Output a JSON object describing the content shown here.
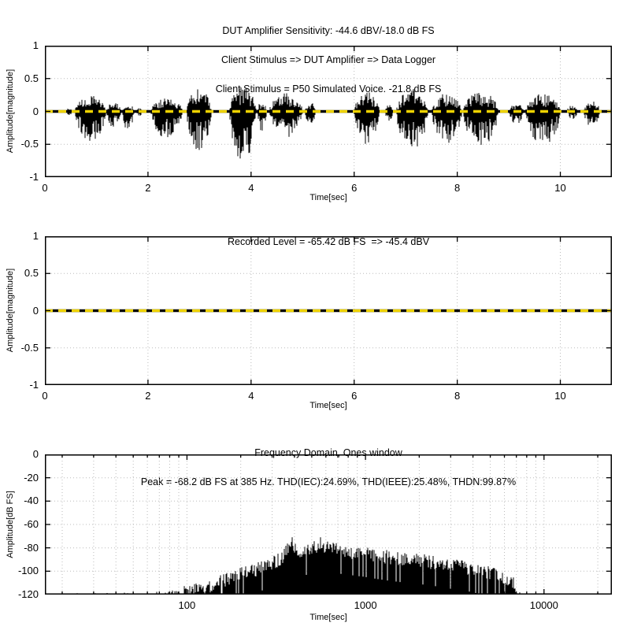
{
  "figure": {
    "background": "#ffffff"
  },
  "colors": {
    "data_line": "#000000",
    "reference_line": "#eed200",
    "grid_line": "#bbbbbb",
    "frame": "#000000"
  },
  "chart_data": [
    {
      "type": "line",
      "title_lines": [
        "DUT Amplifier Sensitivity: -44.6 dBV/-18.0 dB FS",
        "Client Stimulus => DUT Amplifier => Data Logger",
        "Client Stimulus = P50 Simulated Voice. -21.8 dB FS"
      ],
      "xlabel": "Time[sec]",
      "ylabel": "Amplitude[magnitude]",
      "xscale": "linear",
      "xlim": [
        0,
        11
      ],
      "ylim": [
        -1,
        1
      ],
      "grid": true,
      "legend": "none",
      "xticks": [
        {
          "v": 0,
          "label": "0"
        },
        {
          "v": 2,
          "label": "2"
        },
        {
          "v": 4,
          "label": "4"
        },
        {
          "v": 6,
          "label": "6"
        },
        {
          "v": 8,
          "label": "8"
        },
        {
          "v": 10,
          "label": "10"
        }
      ],
      "yticks": [
        {
          "v": 1,
          "label": "1"
        },
        {
          "v": 0.5,
          "label": "0.5"
        },
        {
          "v": 0,
          "label": "0"
        },
        {
          "v": -0.5,
          "label": "-0.5"
        },
        {
          "v": -1,
          "label": "-1"
        }
      ],
      "series": [
        {
          "name": "stimulus-waveform",
          "kind": "speech",
          "color": "#000000",
          "idle_amplitude": 0.007,
          "bursts": [
            [
              0.42,
              0.52,
              0.06,
              -0.08
            ],
            [
              0.58,
              1.2,
              0.25,
              -0.45
            ],
            [
              1.2,
              1.48,
              0.15,
              -0.25
            ],
            [
              1.5,
              1.73,
              0.12,
              -0.3
            ],
            [
              1.78,
              1.88,
              0.05,
              -0.08
            ],
            [
              2.06,
              2.67,
              0.22,
              -0.42
            ],
            [
              2.75,
              3.23,
              0.35,
              -0.62
            ],
            [
              3.58,
              4.1,
              0.4,
              -0.78
            ],
            [
              4.12,
              4.3,
              0.15,
              -0.3
            ],
            [
              4.35,
              5.0,
              0.28,
              -0.42
            ],
            [
              5.05,
              5.25,
              0.15,
              -0.2
            ],
            [
              6.0,
              6.49,
              0.3,
              -0.55
            ],
            [
              6.6,
              6.75,
              0.1,
              -0.15
            ],
            [
              6.82,
              7.43,
              0.35,
              -0.62
            ],
            [
              7.5,
              8.09,
              0.28,
              -0.5
            ],
            [
              8.11,
              8.8,
              0.3,
              -0.55
            ],
            [
              9.0,
              9.29,
              0.12,
              -0.2
            ],
            [
              9.33,
              10.0,
              0.28,
              -0.55
            ],
            [
              10.13,
              10.33,
              0.1,
              -0.12
            ],
            [
              10.46,
              10.77,
              0.17,
              -0.25
            ]
          ]
        },
        {
          "name": "zero-reference",
          "kind": "dashed-zero",
          "color": "#eed200",
          "y": 0
        }
      ]
    },
    {
      "type": "line",
      "title_lines": [
        "Recorded Level = -65.42 dB FS  => -45.4 dBV"
      ],
      "xlabel": "Time[sec]",
      "ylabel": "Amplitude[magnitude]",
      "xscale": "linear",
      "xlim": [
        0,
        11
      ],
      "ylim": [
        -1,
        1
      ],
      "grid": true,
      "legend": "none",
      "xticks": [
        {
          "v": 0,
          "label": "0"
        },
        {
          "v": 2,
          "label": "2"
        },
        {
          "v": 4,
          "label": "4"
        },
        {
          "v": 6,
          "label": "6"
        },
        {
          "v": 8,
          "label": "8"
        },
        {
          "v": 10,
          "label": "10"
        }
      ],
      "yticks": [
        {
          "v": 1,
          "label": "1"
        },
        {
          "v": 0.5,
          "label": "0.5"
        },
        {
          "v": 0,
          "label": "0"
        },
        {
          "v": -0.5,
          "label": "-0.5"
        },
        {
          "v": -1,
          "label": "-1"
        }
      ],
      "series": [
        {
          "name": "recorded-waveform",
          "kind": "speech",
          "color": "#000000",
          "idle_amplitude": 0.006,
          "bursts": []
        },
        {
          "name": "zero-reference",
          "kind": "dashed-zero",
          "color": "#eed200",
          "y": 0
        }
      ]
    },
    {
      "type": "line",
      "title_lines": [
        "Frequency Domain, Ones window",
        "Peak = -68.2 dB FS at 385 Hz. THD(IEC):24.69%, THD(IEEE):25.48%, THDN:99.87%"
      ],
      "xlabel": "Time[sec]",
      "ylabel": "Amplitude[dB FS]",
      "xscale": "log",
      "xlim": [
        16,
        24000
      ],
      "ylim": [
        -120,
        0
      ],
      "grid": true,
      "legend": "none",
      "xticks": [
        {
          "v": 100,
          "label": "100"
        },
        {
          "v": 1000,
          "label": "1000"
        },
        {
          "v": 10000,
          "label": "10000"
        }
      ],
      "yticks": [
        {
          "v": 0,
          "label": "0"
        },
        {
          "v": -20,
          "label": "-20"
        },
        {
          "v": -40,
          "label": "-40"
        },
        {
          "v": -60,
          "label": "-60"
        },
        {
          "v": -80,
          "label": "-80"
        },
        {
          "v": -100,
          "label": "-100"
        },
        {
          "v": -120,
          "label": "-120"
        }
      ],
      "series": [
        {
          "name": "spectrum",
          "kind": "spectrum",
          "color": "#000000",
          "noise_db": 13,
          "envelope_db": [
            [
              16,
              -119
            ],
            [
              40,
              -118.5
            ],
            [
              60,
              -118
            ],
            [
              80,
              -116
            ],
            [
              100,
              -112
            ],
            [
              130,
              -107
            ],
            [
              160,
              -102
            ],
            [
              200,
              -97
            ],
            [
              250,
              -92
            ],
            [
              300,
              -87
            ],
            [
              340,
              -83
            ],
            [
              385,
              -70
            ],
            [
              420,
              -79
            ],
            [
              470,
              -77
            ],
            [
              520,
              -74
            ],
            [
              560,
              -71
            ],
            [
              620,
              -75
            ],
            [
              700,
              -76
            ],
            [
              800,
              -77
            ],
            [
              1000,
              -79
            ],
            [
              1200,
              -81
            ],
            [
              1500,
              -83
            ],
            [
              2000,
              -85
            ],
            [
              2500,
              -87
            ],
            [
              3000,
              -89
            ],
            [
              4000,
              -92
            ],
            [
              5000,
              -96
            ],
            [
              6000,
              -100
            ],
            [
              6600,
              -103
            ],
            [
              6950,
              -106
            ],
            [
              7050,
              -118.6
            ],
            [
              7500,
              -116.5
            ],
            [
              7800,
              -119.2
            ],
            [
              24000,
              -119.2
            ]
          ]
        }
      ]
    }
  ]
}
